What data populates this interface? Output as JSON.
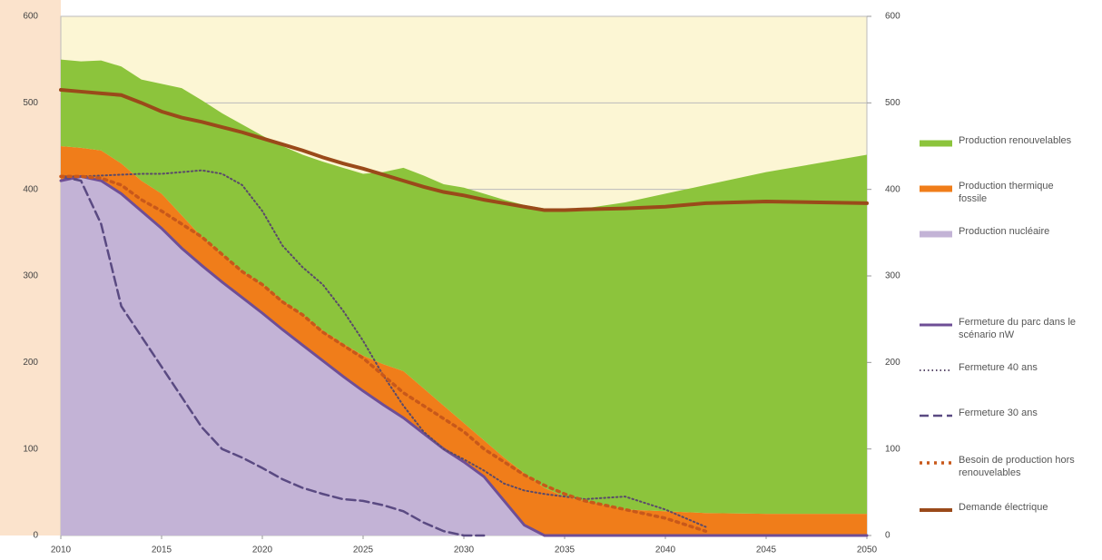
{
  "chart_data": {
    "type": "area",
    "x": [
      2010,
      2011,
      2012,
      2013,
      2014,
      2015,
      2016,
      2017,
      2018,
      2019,
      2020,
      2021,
      2022,
      2023,
      2024,
      2025,
      2026,
      2027,
      2028,
      2029,
      2030,
      2031,
      2032,
      2033,
      2034,
      2035,
      2036,
      2038,
      2040,
      2042,
      2045,
      2050
    ],
    "xlim": [
      2010,
      2050
    ],
    "xticks": [
      2010,
      2015,
      2020,
      2025,
      2030,
      2035,
      2040,
      2045,
      2050
    ],
    "ylim": [
      0,
      600
    ],
    "yticks": [
      0,
      100,
      200,
      300,
      400,
      500,
      600
    ],
    "y2lim": [
      0,
      600
    ],
    "y2ticks": [
      0,
      100,
      200,
      300,
      400,
      500,
      600
    ],
    "grid": true,
    "series": [
      {
        "name": "Production renouvelables",
        "color": "#8cc43c",
        "kind": "area",
        "stack": 2,
        "values": [
          100,
          100,
          104,
          112,
          117,
          127,
          147,
          158,
          163,
          170,
          172,
          178,
          185,
          195,
          203,
          210,
          222,
          235,
          246,
          256,
          272,
          285,
          298,
          310,
          323,
          333,
          338,
          355,
          367,
          379,
          395,
          415
        ]
      },
      {
        "name": "Production thermique fossile",
        "color": "#f07d1a",
        "kind": "area",
        "stack": 1,
        "values": [
          40,
          33,
          35,
          35,
          35,
          40,
          38,
          33,
          32,
          30,
          33,
          34,
          35,
          35,
          38,
          41,
          47,
          54,
          52,
          50,
          45,
          42,
          50,
          60,
          55,
          45,
          40,
          30,
          28,
          26,
          25,
          25
        ]
      },
      {
        "name": "Production nucléaire",
        "color": "#c3b3d6",
        "kind": "area",
        "stack": 0,
        "values": [
          410,
          415,
          410,
          395,
          375,
          355,
          332,
          312,
          293,
          275,
          257,
          238,
          220,
          202,
          184,
          167,
          151,
          136,
          118,
          100,
          85,
          68,
          40,
          12,
          0,
          0,
          0,
          0,
          0,
          0,
          0,
          0
        ]
      },
      {
        "name": "Fermeture du parc dans le scénario nW",
        "color": "#6e4e96",
        "kind": "line",
        "dash": "none",
        "width": 3,
        "values": [
          410,
          415,
          410,
          395,
          375,
          355,
          332,
          312,
          293,
          275,
          257,
          238,
          220,
          202,
          184,
          167,
          151,
          136,
          118,
          100,
          85,
          68,
          40,
          12,
          0,
          0,
          0,
          0,
          0,
          0,
          0,
          0
        ]
      },
      {
        "name": "Fermeture 40 ans",
        "color": "#5a4a6a",
        "kind": "line",
        "dash": "1.5 3",
        "width": 2,
        "values": [
          415,
          415,
          416,
          417,
          418,
          418,
          420,
          422,
          418,
          405,
          375,
          335,
          310,
          290,
          260,
          225,
          185,
          150,
          120,
          100,
          88,
          75,
          60,
          52,
          48,
          45,
          42,
          45,
          30,
          10,
          null,
          null
        ]
      },
      {
        "name": "Fermeture 30 ans",
        "color": "#5a4a82",
        "kind": "line",
        "dash": "10 5",
        "width": 2.5,
        "values": [
          415,
          410,
          360,
          265,
          230,
          195,
          160,
          125,
          100,
          90,
          78,
          65,
          55,
          48,
          42,
          40,
          35,
          28,
          15,
          5,
          0,
          0,
          null,
          null,
          null,
          null,
          null,
          null,
          null,
          null,
          null,
          null
        ]
      },
      {
        "name": "Besoin de production hors renouvelables",
        "color": "#c8581a",
        "kind": "line",
        "dash": "3 5",
        "width": 3.5,
        "values": [
          415,
          415,
          413,
          405,
          388,
          375,
          360,
          345,
          325,
          305,
          290,
          270,
          255,
          235,
          220,
          205,
          185,
          165,
          150,
          135,
          120,
          100,
          85,
          70,
          58,
          48,
          40,
          30,
          20,
          5,
          null,
          null
        ]
      },
      {
        "name": "Demande électrique",
        "color": "#9a4a1a",
        "kind": "line",
        "dash": "none",
        "width": 4,
        "values": [
          515,
          513,
          511,
          509,
          500,
          490,
          483,
          478,
          472,
          466,
          459,
          452,
          445,
          437,
          430,
          424,
          417,
          410,
          403,
          397,
          393,
          388,
          384,
          380,
          376,
          376,
          377,
          378,
          380,
          384,
          386,
          384
        ]
      }
    ]
  }
}
